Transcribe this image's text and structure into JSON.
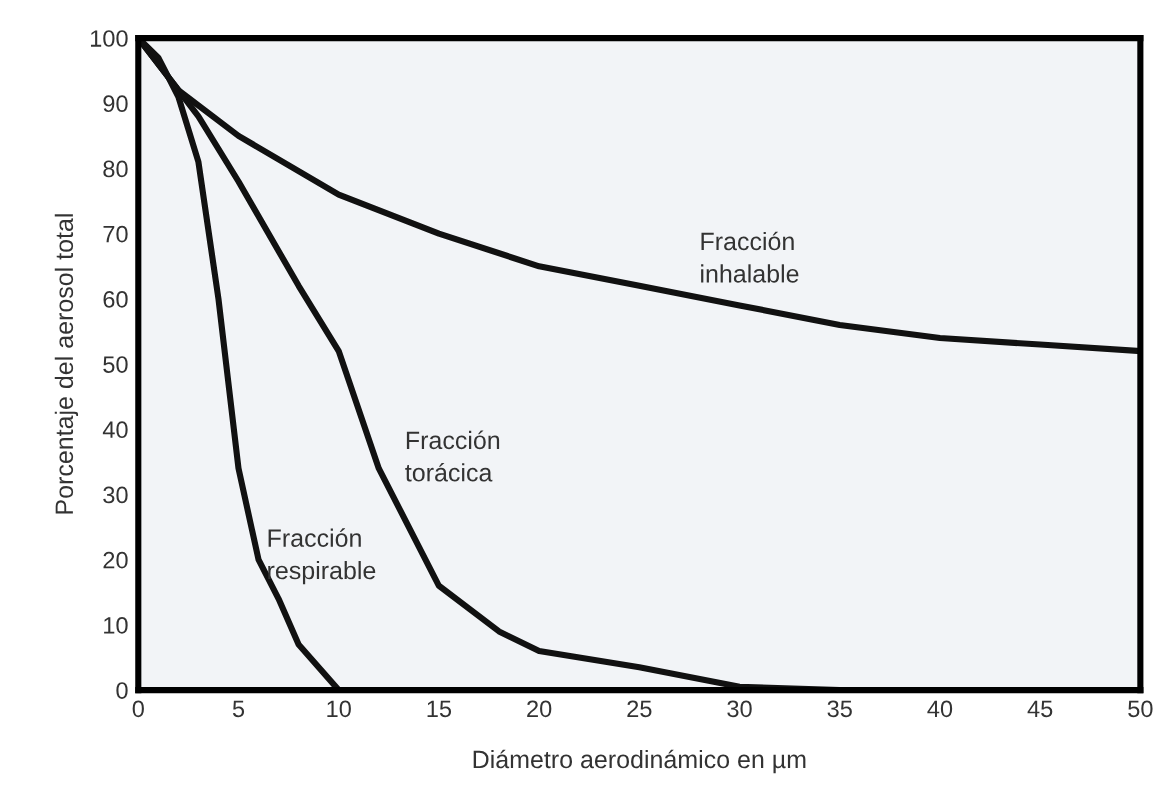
{
  "chart_data": {
    "type": "line",
    "xlabel": "Diámetro aerodinámico en µm",
    "ylabel": "Porcentaje del aerosol total",
    "xlim": [
      0,
      50
    ],
    "ylim": [
      0,
      100
    ],
    "xticks": [
      0,
      5,
      10,
      15,
      20,
      25,
      30,
      35,
      40,
      45,
      50
    ],
    "yticks": [
      0,
      10,
      20,
      30,
      40,
      50,
      60,
      70,
      80,
      90,
      100
    ],
    "grid": false,
    "legend": false,
    "marker": "none",
    "line_style": "solid",
    "series": [
      {
        "name": "Fracción inhalable",
        "color": "#111111",
        "x": [
          0,
          2,
          5,
          10,
          15,
          20,
          25,
          30,
          35,
          40,
          45,
          50
        ],
        "values": [
          100,
          92,
          85,
          76,
          70,
          65,
          62,
          59,
          56,
          54,
          53,
          52
        ]
      },
      {
        "name": "Fracción torácica",
        "color": "#111111",
        "x": [
          0,
          2,
          3,
          5,
          8,
          10,
          12,
          15,
          18,
          20,
          25,
          30,
          35,
          50
        ],
        "values": [
          100,
          92,
          88,
          78,
          62,
          52,
          34,
          16,
          9,
          6,
          3.5,
          0.5,
          0,
          0
        ]
      },
      {
        "name": "Fracción respirable",
        "color": "#111111",
        "x": [
          0,
          1,
          2,
          3,
          4,
          5,
          6,
          7,
          8,
          10,
          15,
          50
        ],
        "values": [
          100,
          97,
          91,
          81,
          60,
          34,
          20,
          14,
          7,
          0,
          0,
          0
        ]
      }
    ]
  }
}
